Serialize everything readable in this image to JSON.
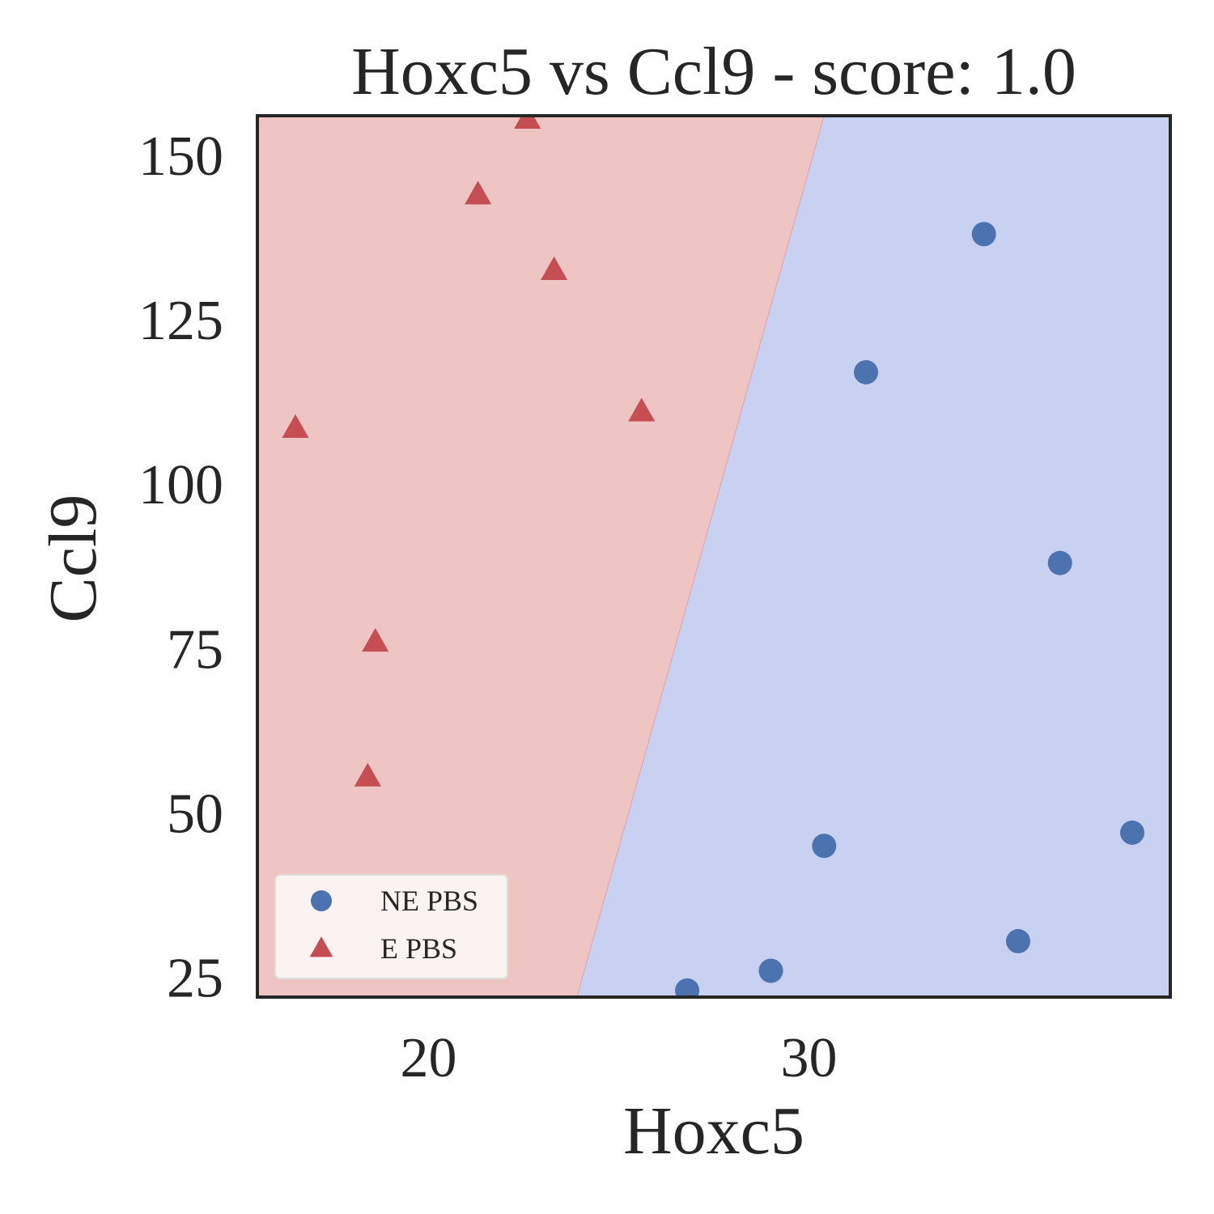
{
  "chart_data": {
    "type": "scatter",
    "title": "Hoxc5 vs Ccl9 - score: 1.0",
    "xlabel": "Hoxc5",
    "ylabel": "Ccl9",
    "xlim": [
      15.5,
      39.5
    ],
    "ylim": [
      22,
      156
    ],
    "xticks": [
      20,
      30
    ],
    "yticks": [
      25,
      50,
      75,
      100,
      125,
      150
    ],
    "grid": false,
    "legend_position": "lower-left",
    "decision_boundary": {
      "line": [
        [
          23.9,
          22
        ],
        [
          30.4,
          156
        ]
      ],
      "left_region_color": "#efc5c3",
      "right_region_color": "#c9d1f2"
    },
    "series": [
      {
        "name": "NE PBS",
        "marker": "circle",
        "color": "#4c72b0",
        "points": [
          [
            34.6,
            138.0
          ],
          [
            31.5,
            117.0
          ],
          [
            36.6,
            88.0
          ],
          [
            30.4,
            45.0
          ],
          [
            38.5,
            47.0
          ],
          [
            35.5,
            30.5
          ],
          [
            29.0,
            26.0
          ],
          [
            26.8,
            23.0
          ]
        ]
      },
      {
        "name": "E PBS",
        "marker": "triangle",
        "color": "#c44e52",
        "points": [
          [
            22.6,
            155.5
          ],
          [
            21.3,
            144.0
          ],
          [
            23.3,
            132.5
          ],
          [
            16.5,
            108.5
          ],
          [
            25.6,
            111.0
          ],
          [
            18.6,
            76.0
          ],
          [
            18.4,
            55.5
          ]
        ]
      }
    ]
  }
}
